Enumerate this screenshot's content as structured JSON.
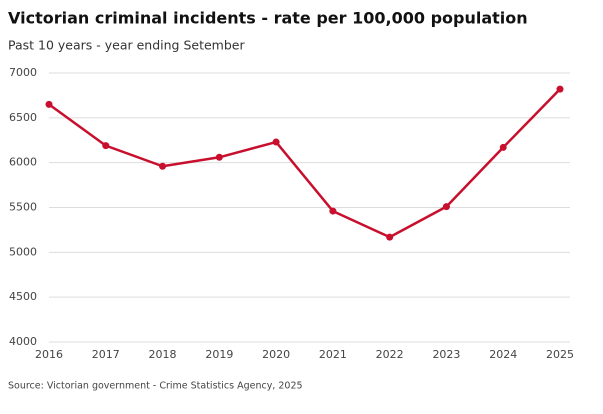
{
  "chart_data": {
    "type": "line",
    "title": "Victorian criminal incidents - rate per 100,000 population",
    "subtitle": "Past 10 years - year ending Setember",
    "source": "Source: Victorian government - Crime Statistics Agency, 2025",
    "x": [
      2016,
      2017,
      2018,
      2019,
      2020,
      2021,
      2022,
      2023,
      2024,
      2025
    ],
    "series": [
      {
        "name": "Rate per 100,000 population",
        "color": "#c8102e",
        "values": [
          6650,
          6190,
          5960,
          6060,
          6230,
          5460,
          5170,
          5510,
          6170,
          6820
        ]
      }
    ],
    "xlim": [
      2016,
      2025
    ],
    "xticks": [
      2016,
      2017,
      2018,
      2019,
      2020,
      2021,
      2022,
      2023,
      2024,
      2025
    ],
    "ylim": [
      4000,
      7000
    ],
    "yticks": [
      4000,
      4500,
      5000,
      5500,
      6000,
      6500,
      7000
    ],
    "grid": true
  }
}
